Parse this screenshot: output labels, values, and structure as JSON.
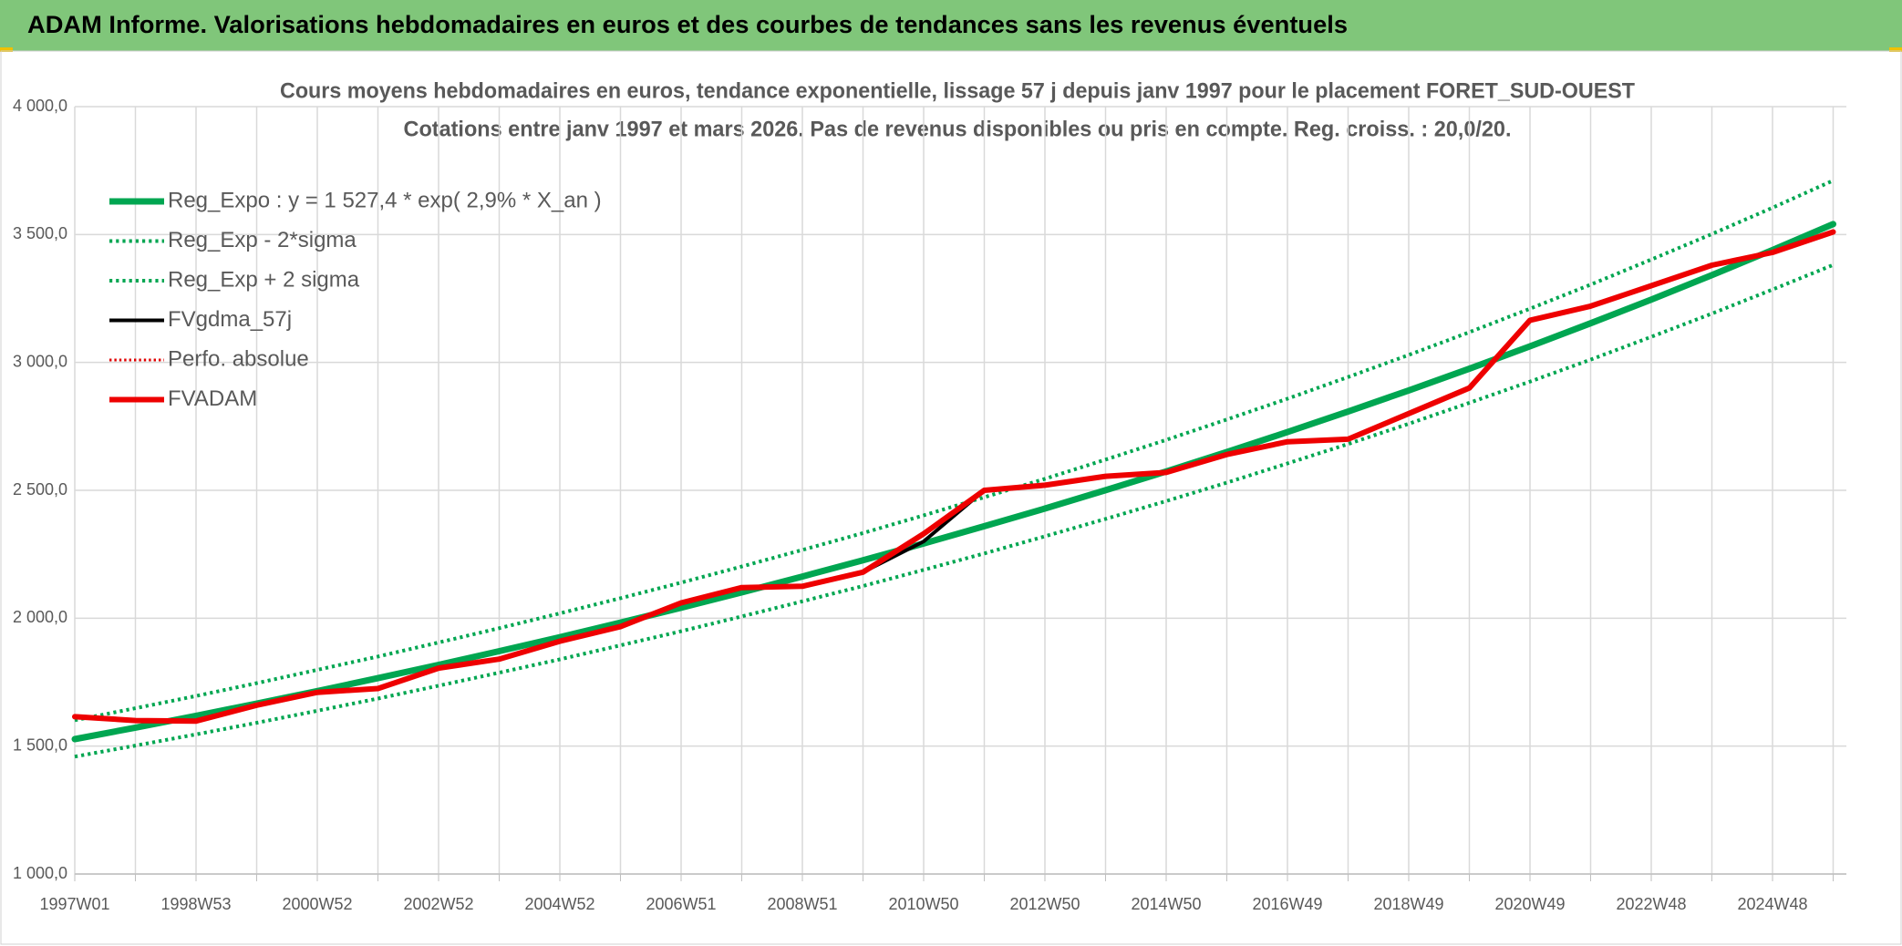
{
  "chart_data": {
    "type": "line",
    "title": "ADAM Informe. Valorisations hebdomadaires en euros et des courbes de tendances sans les revenus éventuels",
    "subtitle": [
      "Cours moyens hebdomadaires en euros, tendance exponentielle, lissage 57 j depuis janv 1997 pour le placement FORET_SUD-OUEST",
      "Cotations entre janv 1997 et mars 2026. Pas de revenus disponibles ou pris en compte. Reg. croiss. : 20,0/20."
    ],
    "categories": [
      "1997W01",
      null,
      "1998W53",
      null,
      "2000W52",
      null,
      "2002W52",
      null,
      "2004W52",
      null,
      "2006W51",
      null,
      "2008W51",
      null,
      "2010W50",
      null,
      "2012W50",
      null,
      "2014W50",
      null,
      "2016W49",
      null,
      "2018W49",
      null,
      "2020W49",
      null,
      "2022W48",
      null,
      "2024W48",
      null
    ],
    "ylim": [
      1000,
      4000
    ],
    "yticks": [
      {
        "value": 1000,
        "label": "1 000,0"
      },
      {
        "value": 1500,
        "label": "1 500,0"
      },
      {
        "value": 2000,
        "label": "2 000,0"
      },
      {
        "value": 2500,
        "label": "2 500,0"
      },
      {
        "value": 3000,
        "label": "3 000,0"
      },
      {
        "value": 3500,
        "label": "3 500,0"
      },
      {
        "value": 4000,
        "label": "4 000,0"
      }
    ],
    "grid": true,
    "legend": "top-left",
    "series": [
      {
        "name": "Reg_Expo : y = 1 527,4 * exp( 2,9% *  X_an )",
        "color": "#00a651",
        "dash": "solid",
        "width": 7,
        "values": [
          1527.4,
          1572.3,
          1618.6,
          1666.2,
          1715.2,
          1765.7,
          1817.6,
          1871.1,
          1926.1,
          1982.8,
          2041.1,
          2101.1,
          2162.9,
          2226.6,
          2292.1,
          2359.5,
          2428.9,
          2500.4,
          2573.9,
          2649.6,
          2727.6,
          2807.8,
          2890.4,
          2975.4,
          3062.9,
          3153.0,
          3245.8,
          3341.3,
          3439.5,
          3540.7
        ]
      },
      {
        "name": "Reg_Exp - 2*sigma",
        "color": "#00a651",
        "dash": "dotted",
        "width": 4,
        "values": [
          1459,
          1502,
          1546,
          1591,
          1638,
          1686,
          1736,
          1787,
          1839,
          1894,
          1949,
          2007,
          2066,
          2126,
          2189,
          2253,
          2320,
          2388,
          2458,
          2530,
          2605,
          2681,
          2760,
          2842,
          2925,
          3011,
          3100,
          3191,
          3285,
          3381
        ]
      },
      {
        "name": "Reg_Exp + 2 sigma",
        "color": "#00a651",
        "dash": "dotted",
        "width": 4,
        "values": [
          1601,
          1648,
          1696,
          1746,
          1798,
          1850,
          1905,
          1961,
          2019,
          2078,
          2139,
          2202,
          2267,
          2333,
          2402,
          2473,
          2545,
          2620,
          2697,
          2777,
          2858,
          2943,
          3029,
          3118,
          3210,
          3304,
          3402,
          3502,
          3605,
          3711
        ]
      },
      {
        "name": "FVgdma_57j",
        "color": "#000000",
        "dash": "solid",
        "width": 4,
        "values": [
          1615,
          1600,
          1598,
          1660,
          1710,
          1725,
          1805,
          1840,
          1910,
          1967,
          2060,
          2120,
          2125,
          2180,
          2300,
          2500,
          2520,
          2555,
          2570,
          2640,
          2690,
          2700,
          2800,
          2900,
          3165,
          3220,
          3300,
          3380,
          3430,
          3510
        ]
      },
      {
        "name": "Perfo. absolue",
        "color": "#e00000",
        "dash": "dotted",
        "width": 3,
        "values": [
          1615,
          1600,
          1598,
          1660,
          1710,
          1725,
          1805,
          1840,
          1910,
          1967,
          2060,
          2120,
          2125,
          2180,
          2330,
          2500,
          2520,
          2555,
          2570,
          2640,
          2690,
          2700,
          2800,
          2900,
          3165,
          3220,
          3300,
          3380,
          3430,
          3510
        ]
      },
      {
        "name": "FVADAM",
        "color": "#ee0000",
        "dash": "solid",
        "width": 6,
        "values": [
          1615,
          1600,
          1598,
          1660,
          1710,
          1725,
          1805,
          1840,
          1910,
          1967,
          2060,
          2120,
          2125,
          2180,
          2330,
          2500,
          2520,
          2555,
          2570,
          2640,
          2690,
          2700,
          2800,
          2900,
          3165,
          3220,
          3300,
          3380,
          3430,
          3510
        ]
      }
    ]
  }
}
